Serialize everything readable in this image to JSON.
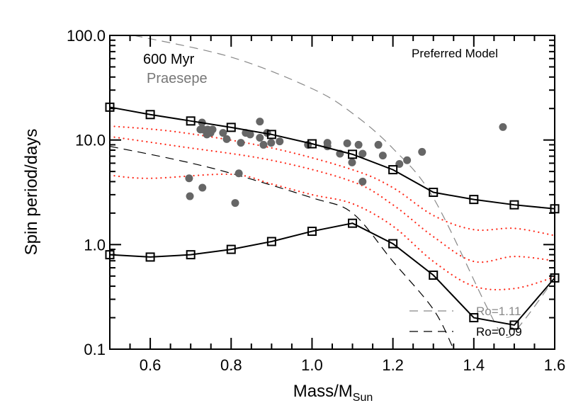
{
  "chart_data": {
    "type": "line",
    "xlabel": "Mass/M",
    "xlabel_sub": "Sun",
    "ylabel": "Spin period/days",
    "xlim": [
      0.5,
      1.6
    ],
    "ylim": [
      0.1,
      100.0
    ],
    "yscale": "log",
    "grid": false,
    "x_ticks": [
      0.6,
      0.8,
      1.0,
      1.2,
      1.4,
      1.6
    ],
    "x_tick_labels": [
      "0.6",
      "0.8",
      "1.0",
      "1.2",
      "1.4",
      "1.6"
    ],
    "y_ticks": [
      0.1,
      1.0,
      10.0,
      100.0
    ],
    "y_tick_labels": [
      "0.1",
      "1.0",
      "10.0",
      "100.0"
    ],
    "annotations": {
      "age": "600 Myr",
      "cluster": "Praesepe",
      "model": "Preferred Model"
    },
    "colors": {
      "model": "#000000",
      "scatter": "#666666",
      "dotted": "#ff2a1a",
      "ro_high": "#888888",
      "ro_low": "#000000"
    },
    "legend": {
      "placement": "bottom-right",
      "entries": [
        {
          "label": "Ro=1.11",
          "style": "dashed",
          "color": "#888888"
        },
        {
          "label": "Ro=0.09",
          "style": "dashed",
          "color": "#000000"
        }
      ]
    },
    "model_upper": {
      "x": [
        0.5,
        0.6,
        0.7,
        0.8,
        0.9,
        1.0,
        1.1,
        1.2,
        1.3,
        1.4,
        1.5,
        1.6
      ],
      "y": [
        20.6,
        17.5,
        15.2,
        13.2,
        11.3,
        9.2,
        7.3,
        5.2,
        3.16,
        2.7,
        2.4,
        2.2
      ]
    },
    "model_lower": {
      "x": [
        0.5,
        0.6,
        0.7,
        0.8,
        0.9,
        1.0,
        1.1,
        1.2,
        1.3,
        1.4,
        1.5,
        1.6
      ],
      "y": [
        0.8,
        0.76,
        0.8,
        0.9,
        1.07,
        1.34,
        1.6,
        1.02,
        0.51,
        0.2,
        0.17,
        0.48
      ]
    },
    "dotted_curves": [
      {
        "x": [
          0.5,
          0.67,
          0.9,
          1.1,
          1.2,
          1.3,
          1.4,
          1.5,
          1.6
        ],
        "y": [
          13.6,
          11.9,
          8.4,
          5.2,
          3.5,
          1.9,
          1.39,
          1.43,
          1.22
        ]
      },
      {
        "x": [
          0.5,
          0.67,
          0.9,
          1.1,
          1.2,
          1.3,
          1.4,
          1.5,
          1.6
        ],
        "y": [
          10.8,
          8.7,
          6.4,
          4.0,
          2.4,
          1.19,
          0.69,
          0.77,
          0.7
        ]
      },
      {
        "x": [
          0.5,
          0.6,
          0.8,
          0.9,
          1.0,
          1.1,
          1.2,
          1.3,
          1.4,
          1.5,
          1.6
        ],
        "y": [
          4.6,
          4.3,
          4.7,
          3.8,
          3.0,
          2.46,
          1.5,
          0.69,
          0.4,
          0.38,
          0.49
        ]
      }
    ],
    "ro_high": {
      "x": [
        0.56,
        0.8,
        1.0,
        1.1,
        1.2,
        1.3,
        1.44,
        1.48,
        1.52,
        1.59
      ],
      "y": [
        100,
        62,
        31,
        18,
        8.3,
        2.8,
        0.22,
        0.13,
        0.18,
        0.42
      ]
    },
    "ro_low": {
      "x": [
        0.5,
        0.67,
        0.8,
        1.0,
        1.1,
        1.2,
        1.3,
        1.35
      ],
      "y": [
        8.7,
        6.4,
        4.8,
        2.8,
        2.0,
        0.69,
        0.24,
        0.1
      ]
    },
    "scatter": {
      "x": [
        0.728,
        0.731,
        0.742,
        0.754,
        0.724,
        0.749,
        0.74,
        0.78,
        0.789,
        0.871,
        0.824,
        0.836,
        0.847,
        0.871,
        0.88,
        0.889,
        0.899,
        0.92,
        0.99,
        1.038,
        1.038,
        1.069,
        1.087,
        1.115,
        1.125,
        1.099,
        1.164,
        1.175,
        1.125,
        0.819,
        0.696,
        0.729,
        0.698,
        0.81,
        1.216,
        1.235,
        1.272,
        1.472
      ],
      "y": [
        14.7,
        12.6,
        12.6,
        12.6,
        12.6,
        11.7,
        11.3,
        11.7,
        10.2,
        15.0,
        9.4,
        11.7,
        11.3,
        10.5,
        9.0,
        11.7,
        9.4,
        9.7,
        9.0,
        9.4,
        8.7,
        7.4,
        9.3,
        9.0,
        7.4,
        6.1,
        9.0,
        7.1,
        4.0,
        4.8,
        4.3,
        3.5,
        2.9,
        2.5,
        5.9,
        6.4,
        7.7,
        13.3
      ]
    }
  }
}
